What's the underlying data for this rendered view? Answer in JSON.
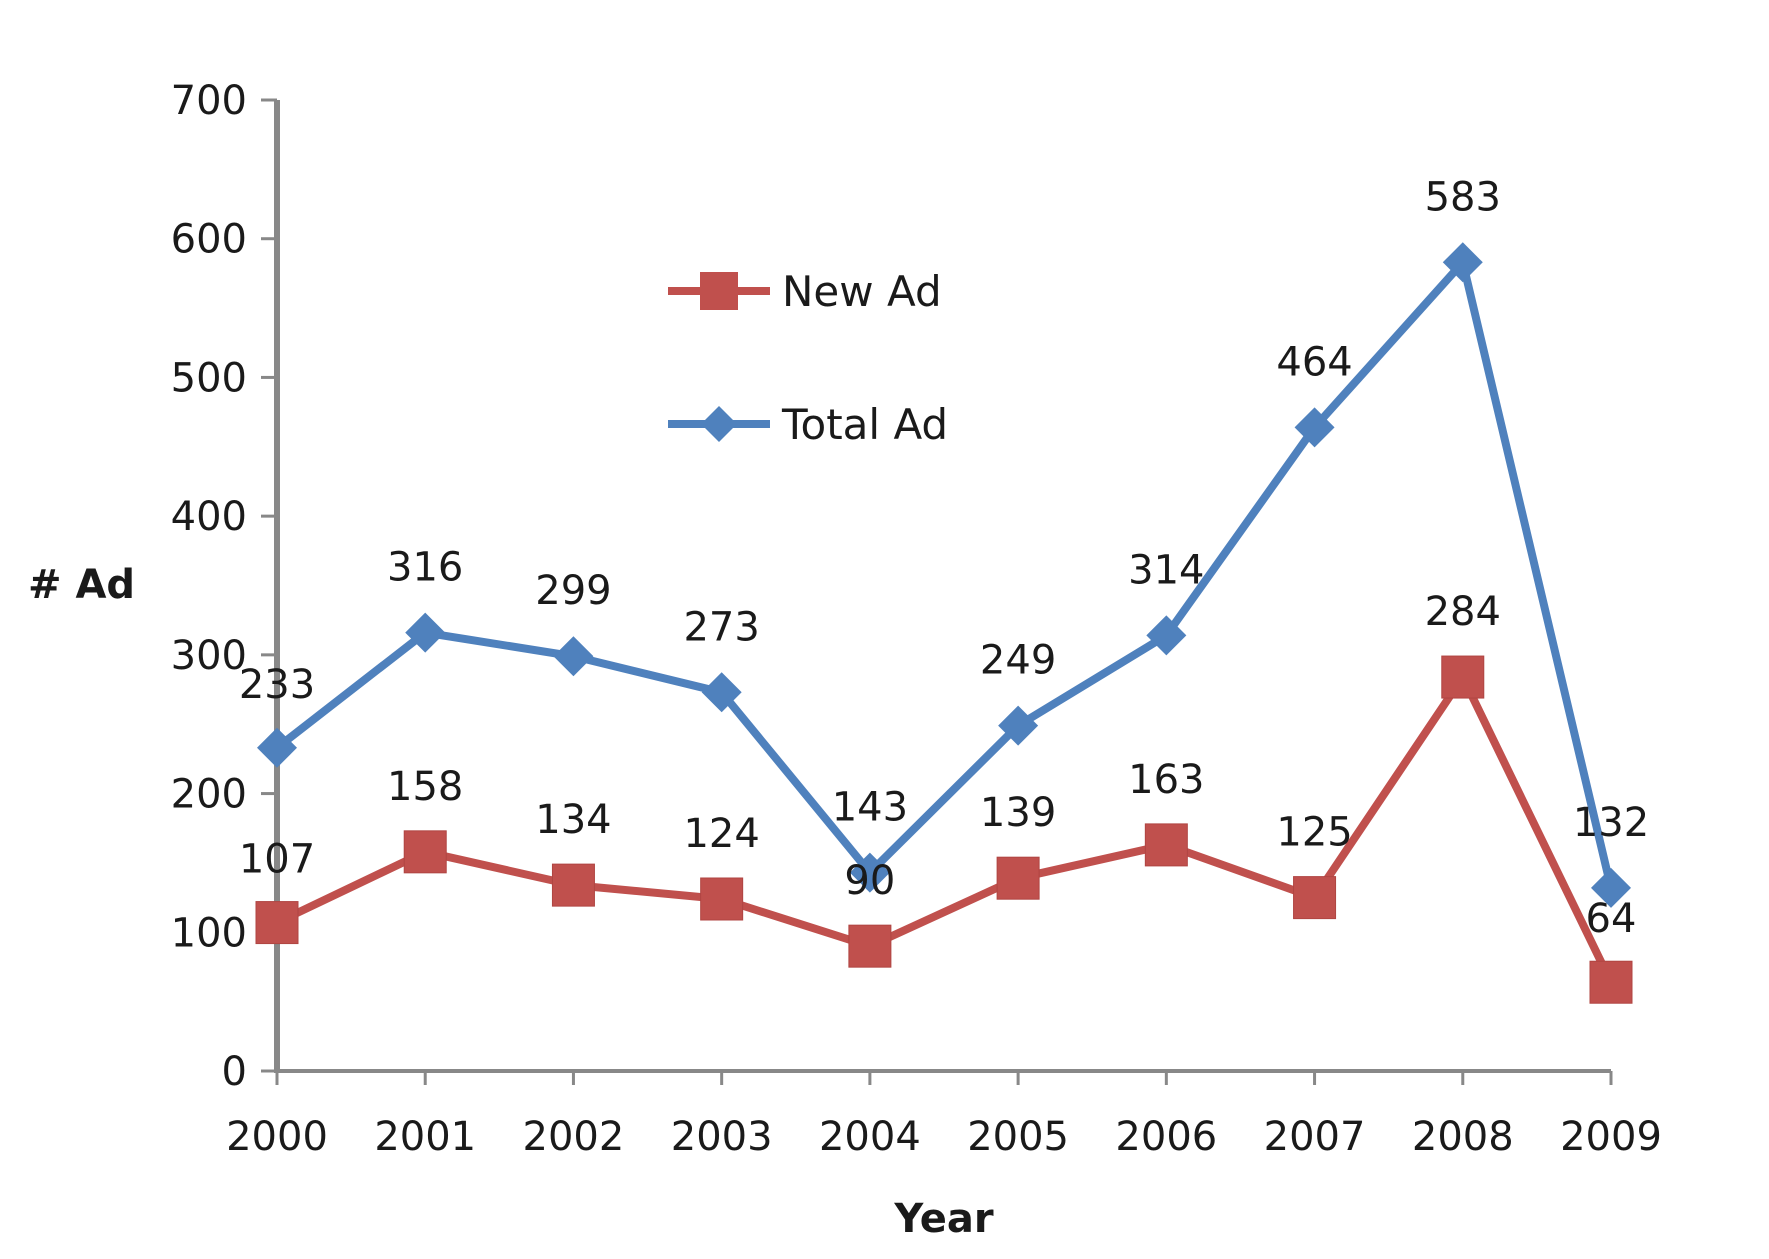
{
  "chart_data": {
    "type": "line",
    "title": "",
    "xlabel": "Year",
    "ylabel": "# Ad",
    "categories": [
      "2000",
      "2001",
      "2002",
      "2003",
      "2004",
      "2005",
      "2006",
      "2007",
      "2008",
      "2009"
    ],
    "ylim": [
      0,
      700
    ],
    "yticks": [
      "0",
      "100",
      "200",
      "300",
      "400",
      "500",
      "600",
      "700"
    ],
    "grid": false,
    "legend_position": "top-center",
    "series": [
      {
        "name": "New Ad",
        "marker": "square",
        "color": "#c0504d",
        "values": [
          107,
          158,
          134,
          124,
          90,
          139,
          163,
          125,
          284,
          64
        ]
      },
      {
        "name": "Total Ad",
        "marker": "diamond",
        "color": "#4f81bd",
        "values": [
          233,
          316,
          299,
          273,
          143,
          249,
          314,
          464,
          583,
          132
        ]
      }
    ]
  },
  "colors": {
    "axis": "#888888",
    "text": "#1a1a1a",
    "background": "#ffffff"
  }
}
